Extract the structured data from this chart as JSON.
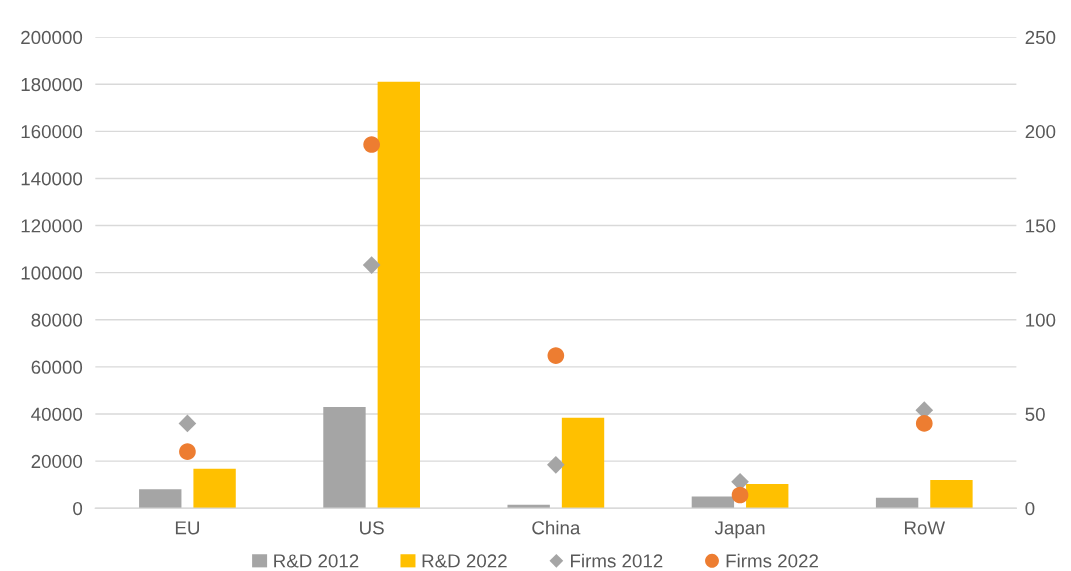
{
  "chart_data": {
    "type": "bar",
    "categories": [
      "EU",
      "US",
      "China",
      "Japan",
      "RoW"
    ],
    "series": [
      {
        "name": "R&D 2012",
        "axis": "y",
        "color": "#a5a5a5",
        "values": [
          8000,
          43000,
          1500,
          5000,
          4400
        ]
      },
      {
        "name": "R&D 2022",
        "axis": "y",
        "color": "#ffc000",
        "values": [
          16700,
          181000,
          38400,
          10300,
          12000
        ]
      },
      {
        "name": "Firms 2012",
        "type": "scatter",
        "axis": "y2",
        "marker": "diamond",
        "color": "#a5a5a5",
        "values": [
          45,
          129,
          23,
          14,
          52
        ]
      },
      {
        "name": "Firms 2022",
        "type": "scatter",
        "axis": "y2",
        "marker": "circle",
        "color": "#ed7d31",
        "values": [
          30,
          193,
          81,
          7,
          45
        ]
      }
    ],
    "ylim": [
      0,
      200000
    ],
    "yticks": [
      0,
      20000,
      40000,
      60000,
      80000,
      100000,
      120000,
      140000,
      160000,
      180000,
      200000
    ],
    "y2lim": [
      0,
      250
    ],
    "y2ticks": [
      0,
      50,
      100,
      150,
      200,
      250
    ],
    "grid": "y",
    "legend": "bottom"
  }
}
